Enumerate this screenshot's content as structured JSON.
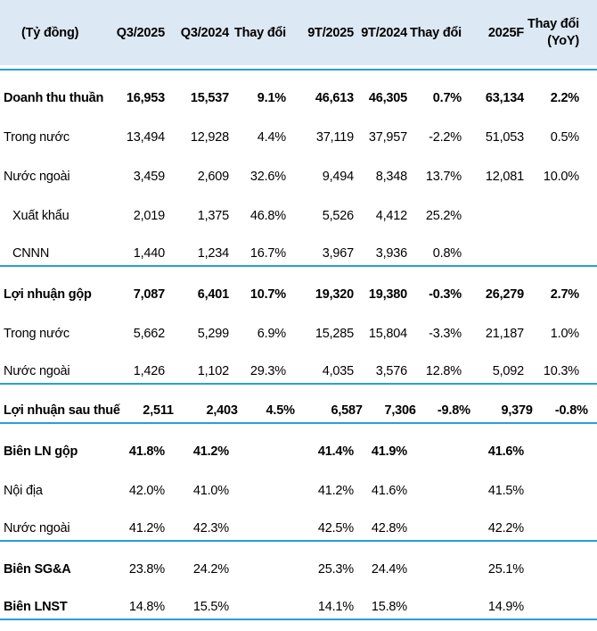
{
  "colors": {
    "header_bg": "#dce8f4",
    "accent_line": "#289fd9",
    "text": "#000000"
  },
  "chart_data": {
    "type": "table",
    "unit_label": "(Tỷ đồng)",
    "columns": [
      "Q3/2025",
      "Q3/2024",
      "Thay đổi",
      "9T/2025",
      "9T/2024",
      "Thay đổi",
      "2025F",
      "Thay đổi (YoY)"
    ],
    "rows": [
      {
        "label": "Doanh thu thuần",
        "emphasis": "bold",
        "indent": false,
        "divider": false,
        "values": [
          "16,953",
          "15,537",
          "9.1%",
          "46,613",
          "46,305",
          "0.7%",
          "63,134",
          "2.2%"
        ]
      },
      {
        "label": "Trong nước",
        "emphasis": "normal",
        "indent": false,
        "divider": false,
        "values": [
          "13,494",
          "12,928",
          "4.4%",
          "37,119",
          "37,957",
          "-2.2%",
          "51,053",
          "0.5%"
        ]
      },
      {
        "label": "Nước ngoài",
        "emphasis": "normal",
        "indent": false,
        "divider": false,
        "values": [
          "3,459",
          "2,609",
          "32.6%",
          "9,494",
          "8,348",
          "13.7%",
          "12,081",
          "10.0%"
        ]
      },
      {
        "label": "Xuất khẩu",
        "emphasis": "normal",
        "indent": true,
        "divider": false,
        "values": [
          "2,019",
          "1,375",
          "46.8%",
          "5,526",
          "4,412",
          "25.2%",
          "",
          ""
        ]
      },
      {
        "label": "CNNN",
        "emphasis": "normal",
        "indent": true,
        "divider": true,
        "values": [
          "1,440",
          "1,234",
          "16.7%",
          "3,967",
          "3,936",
          "0.8%",
          "",
          ""
        ]
      },
      {
        "label": "Lợi nhuận gộp",
        "emphasis": "bold",
        "indent": false,
        "divider": false,
        "values": [
          "7,087",
          "6,401",
          "10.7%",
          "19,320",
          "19,380",
          "-0.3%",
          "26,279",
          "2.7%"
        ]
      },
      {
        "label": "Trong nước",
        "emphasis": "normal",
        "indent": false,
        "divider": false,
        "values": [
          "5,662",
          "5,299",
          "6.9%",
          "15,285",
          "15,804",
          "-3.3%",
          "21,187",
          "1.0%"
        ]
      },
      {
        "label": "Nước ngoài",
        "emphasis": "normal",
        "indent": false,
        "divider": true,
        "values": [
          "1,426",
          "1,102",
          "29.3%",
          "4,035",
          "3,576",
          "12.8%",
          "5,092",
          "10.3%"
        ]
      },
      {
        "label": "Lợi nhuận sau thuế",
        "emphasis": "bold",
        "indent": false,
        "divider": true,
        "values": [
          "2,511",
          "2,403",
          "4.5%",
          "6,587",
          "7,306",
          "-9.8%",
          "9,379",
          "-0.8%"
        ]
      },
      {
        "label": "Biên LN gộp",
        "emphasis": "bold",
        "indent": false,
        "divider": false,
        "values": [
          "41.8%",
          "41.2%",
          "",
          "41.4%",
          "41.9%",
          "",
          "41.6%",
          ""
        ]
      },
      {
        "label": "Nội địa",
        "emphasis": "normal",
        "indent": false,
        "divider": false,
        "values": [
          "42.0%",
          "41.0%",
          "",
          "41.2%",
          "41.6%",
          "",
          "41.5%",
          ""
        ]
      },
      {
        "label": "Nước ngoài",
        "emphasis": "normal",
        "indent": false,
        "divider": true,
        "values": [
          "41.2%",
          "42.3%",
          "",
          "42.5%",
          "42.8%",
          "",
          "42.2%",
          ""
        ]
      },
      {
        "label": "Biên SG&A",
        "emphasis": "bold-label",
        "indent": false,
        "divider": false,
        "values": [
          "23.8%",
          "24.2%",
          "",
          "25.3%",
          "24.4%",
          "",
          "25.1%",
          ""
        ]
      },
      {
        "label": "Biên LNST",
        "emphasis": "bold-label",
        "indent": false,
        "divider": true,
        "values": [
          "14.8%",
          "15.5%",
          "",
          "14.1%",
          "15.8%",
          "",
          "14.9%",
          ""
        ]
      }
    ]
  }
}
